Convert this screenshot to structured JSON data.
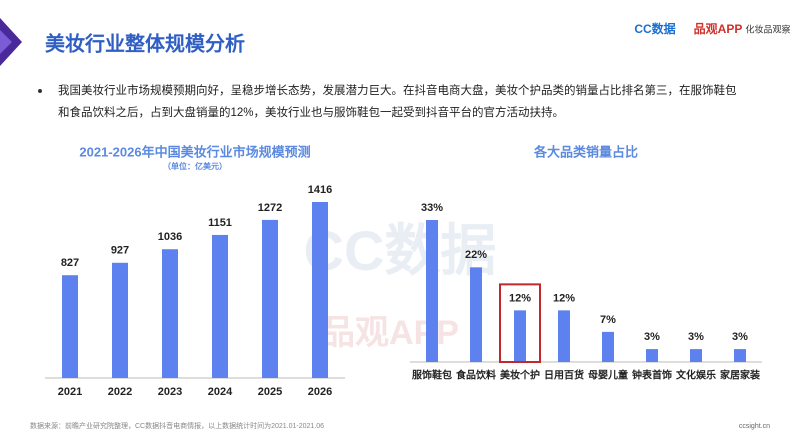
{
  "header": {
    "title": "美妆行业整体规模分析",
    "logos": [
      "CC数据",
      "品观APP",
      "化妆品观察"
    ]
  },
  "bullet": [
    "我国美妆行业市场规模预期向好，呈稳步增长态势，发展潜力巨大。在抖音电商大盘，美妆个护品类的销量占比排名第三，在服饰鞋包",
    "和食品饮料之后，占到大盘销量的12%，美妆行业也与服饰鞋包一起受到抖音平台的官方活动扶持。"
  ],
  "watermark": [
    "CC数据",
    "品观APP"
  ],
  "chart_data": [
    {
      "type": "bar",
      "title": "2021-2026年中国美妆行业市场规模预测",
      "subtitle": "（单位：亿美元）",
      "categories": [
        "2021",
        "2022",
        "2023",
        "2024",
        "2025",
        "2026"
      ],
      "values": [
        827,
        927,
        1036,
        1151,
        1272,
        1416
      ],
      "color": "#5d81ee"
    },
    {
      "type": "bar",
      "title": "各大品类销量占比",
      "categories": [
        "服饰鞋包",
        "食品饮料",
        "美妆个护",
        "日用百货",
        "母婴儿童",
        "钟表首饰",
        "文化娱乐",
        "家居家装"
      ],
      "values": [
        33,
        22,
        12,
        12,
        7,
        3,
        3,
        3
      ],
      "value_labels": [
        "33%",
        "22%",
        "12%",
        "12%",
        "7%",
        "3%",
        "3%",
        "3%"
      ],
      "color": "#5d81ee",
      "highlight": "美妆个护"
    }
  ],
  "footer": {
    "source": "数据来源：前瞻产业研究院整理，CC数据抖音电商情报，以上数据统计时间为2021.01-2021.06",
    "site": "ccsight.cn"
  }
}
